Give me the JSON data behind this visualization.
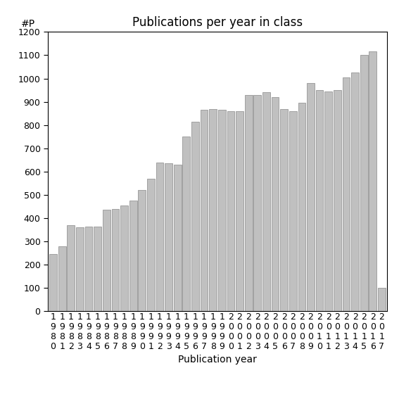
{
  "title": "Publications per year in class",
  "xlabel": "Publication year",
  "ylabel": "#P",
  "years": [
    1980,
    1981,
    1982,
    1983,
    1984,
    1985,
    1986,
    1987,
    1988,
    1989,
    1990,
    1991,
    1992,
    1993,
    1994,
    1995,
    1996,
    1997,
    1998,
    1999,
    2000,
    2001,
    2002,
    2003,
    2004,
    2005,
    2006,
    2007,
    2008,
    2009,
    2010,
    2011,
    2012,
    2013,
    2014,
    2015,
    2016,
    2017
  ],
  "values": [
    245,
    280,
    370,
    360,
    365,
    365,
    435,
    440,
    455,
    475,
    520,
    570,
    640,
    635,
    630,
    750,
    815,
    865,
    870,
    865,
    860,
    860,
    930,
    930,
    940,
    920,
    870,
    860,
    895,
    980,
    950,
    945,
    950,
    1005,
    1025,
    1100,
    1115,
    100
  ],
  "bar_color": "#c0c0c0",
  "bar_edgecolor": "#888888",
  "background_color": "#ffffff",
  "ylim": [
    0,
    1200
  ],
  "yticks": [
    0,
    100,
    200,
    300,
    400,
    500,
    600,
    700,
    800,
    900,
    1000,
    1100,
    1200
  ],
  "title_fontsize": 12,
  "axis_label_fontsize": 10,
  "tick_fontsize": 9,
  "bar_width": 0.85
}
